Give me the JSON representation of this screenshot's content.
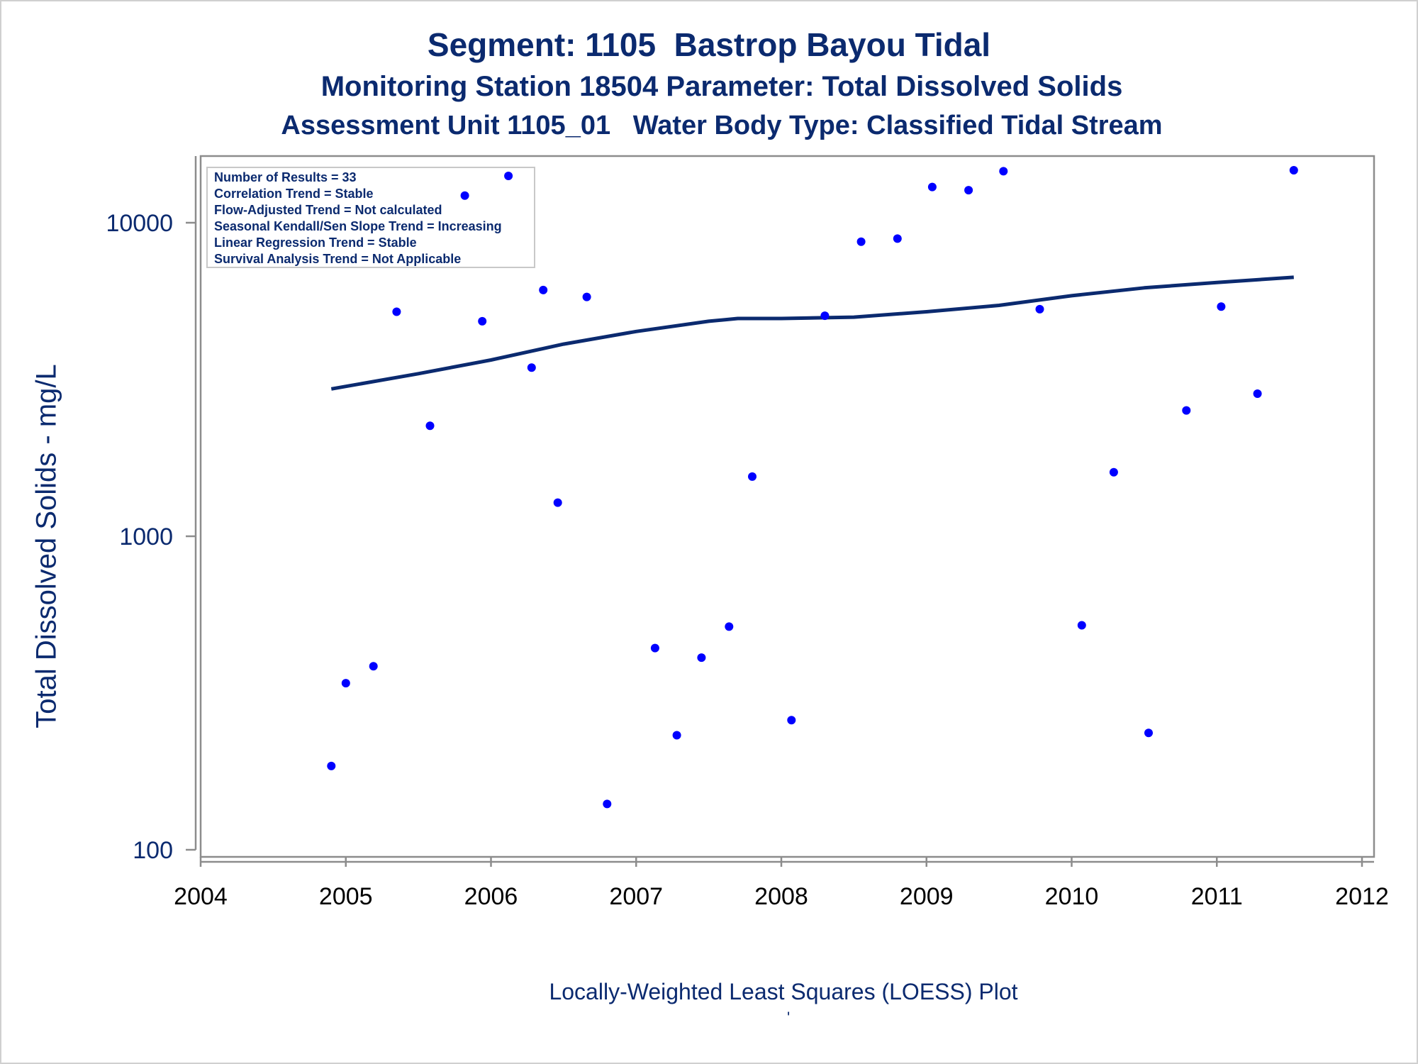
{
  "titles": {
    "line1": "Segment: 1105  Bastrop Bayou Tidal",
    "line2": "Monitoring Station 18504 Parameter: Total Dissolved Solids",
    "line3": "Assessment Unit 1105_01   Water Body Type: Classified Tidal Stream"
  },
  "stats_box": {
    "lines": [
      "Number of Results = 33",
      "Correlation Trend = Stable",
      "Flow-Adjusted Trend = Not calculated",
      "Seasonal Kendall/Sen Slope Trend = Increasing",
      "Linear Regression Trend = Stable",
      "Survival Analysis Trend = Not Applicable"
    ]
  },
  "footnote": "Locally-Weighted Least Squares (LOESS) Plot",
  "footnote_mark": "'",
  "colors": {
    "title": "#0b2a6f",
    "points": "#0000ff",
    "loess_line": "#0b2a6f",
    "axis": "#8c8c8c",
    "y_ticks": "#0b2a6f",
    "x_ticks": "#000000"
  },
  "chart_data": {
    "type": "scatter",
    "ylabel": "Total Dissolved Solids - mg/L",
    "xlabel": "",
    "xlim": [
      2004,
      2012
    ],
    "ylim": [
      100,
      16000
    ],
    "y_scale": "log",
    "x_ticks": [
      2004,
      2005,
      2006,
      2007,
      2008,
      2009,
      2010,
      2011,
      2012
    ],
    "y_ticks": [
      100,
      1000,
      10000
    ],
    "x_tick_labels": [
      "2004",
      "2005",
      "2006",
      "2007",
      "2008",
      "2009",
      "2010",
      "2011",
      "2012"
    ],
    "y_tick_labels": [
      "100",
      "1000",
      "10000"
    ],
    "grid": false,
    "legend": "none",
    "series": [
      {
        "type": "scatter",
        "points": [
          {
            "x": 2004.9,
            "y": 185
          },
          {
            "x": 2005.0,
            "y": 340
          },
          {
            "x": 2005.19,
            "y": 385
          },
          {
            "x": 2005.35,
            "y": 5200
          },
          {
            "x": 2005.58,
            "y": 2250
          },
          {
            "x": 2005.82,
            "y": 12200
          },
          {
            "x": 2005.94,
            "y": 4850
          },
          {
            "x": 2006.12,
            "y": 14100
          },
          {
            "x": 2006.28,
            "y": 3450
          },
          {
            "x": 2006.36,
            "y": 6100
          },
          {
            "x": 2006.46,
            "y": 1280
          },
          {
            "x": 2006.66,
            "y": 5800
          },
          {
            "x": 2006.8,
            "y": 140
          },
          {
            "x": 2007.13,
            "y": 440
          },
          {
            "x": 2007.28,
            "y": 232
          },
          {
            "x": 2007.45,
            "y": 410
          },
          {
            "x": 2007.64,
            "y": 515
          },
          {
            "x": 2007.8,
            "y": 1550
          },
          {
            "x": 2008.07,
            "y": 259
          },
          {
            "x": 2008.3,
            "y": 5050
          },
          {
            "x": 2008.55,
            "y": 8700
          },
          {
            "x": 2008.8,
            "y": 8900
          },
          {
            "x": 2009.04,
            "y": 13000
          },
          {
            "x": 2009.29,
            "y": 12700
          },
          {
            "x": 2009.53,
            "y": 14600
          },
          {
            "x": 2009.78,
            "y": 5300
          },
          {
            "x": 2010.07,
            "y": 520
          },
          {
            "x": 2010.29,
            "y": 1600
          },
          {
            "x": 2010.53,
            "y": 236
          },
          {
            "x": 2010.79,
            "y": 2520
          },
          {
            "x": 2011.03,
            "y": 5400
          },
          {
            "x": 2011.28,
            "y": 2850
          },
          {
            "x": 2011.53,
            "y": 14700
          }
        ]
      },
      {
        "type": "line",
        "points": [
          {
            "x": 2004.9,
            "y": 2950
          },
          {
            "x": 2005.5,
            "y": 3300
          },
          {
            "x": 2006.0,
            "y": 3650
          },
          {
            "x": 2006.5,
            "y": 4100
          },
          {
            "x": 2007.0,
            "y": 4500
          },
          {
            "x": 2007.5,
            "y": 4850
          },
          {
            "x": 2007.7,
            "y": 4950
          },
          {
            "x": 2008.0,
            "y": 4950
          },
          {
            "x": 2008.5,
            "y": 5000
          },
          {
            "x": 2009.0,
            "y": 5200
          },
          {
            "x": 2009.5,
            "y": 5450
          },
          {
            "x": 2010.0,
            "y": 5850
          },
          {
            "x": 2010.5,
            "y": 6200
          },
          {
            "x": 2011.0,
            "y": 6450
          },
          {
            "x": 2011.53,
            "y": 6700
          }
        ]
      }
    ]
  }
}
